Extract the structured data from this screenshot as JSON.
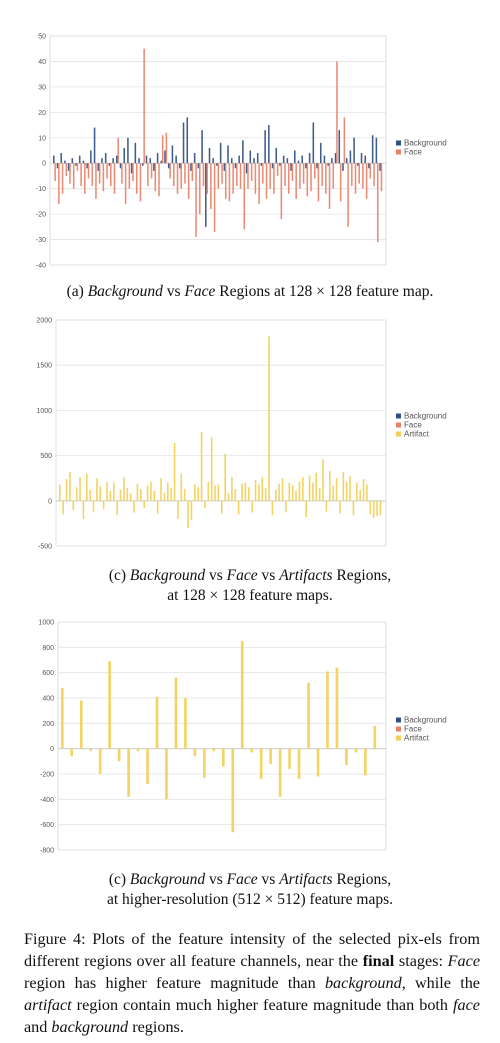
{
  "figure_caption": {
    "prefix": "Figure 4: Plots of the feature intensity of the selected pix-els from different regions over all feature channels, near the ",
    "bold": "final",
    "mid1": " stages: ",
    "face": "Face",
    "mid2": " region has higher feature magnitude than ",
    "background": "background",
    "mid3": ", while the ",
    "artifact": "artifact",
    "mid4": " region contain much higher feature magnitude than both ",
    "face2": "face",
    "mid5": " and ",
    "background2": "background",
    "suffix": " regions."
  },
  "captions": [
    {
      "label": "(a) ",
      "i1": "Background",
      "t1": " vs ",
      "i2": "Face",
      "t2": " Regions at 128 × 128 feature map.",
      "line2": ""
    },
    {
      "label": "(c) ",
      "i1": "Background",
      "t1": " vs ",
      "i2": "Face",
      "t2": " vs ",
      "i3": "Artifacts",
      "t3": " Regions,",
      "line2": "at 128 × 128 feature maps."
    },
    {
      "label": "(c) ",
      "i1": "Background",
      "t1": " vs ",
      "i2": "Face",
      "t2": " vs ",
      "i3": "Artifacts",
      "t3": " Regions,",
      "line2": "at higher-resolution (512 × 512) feature maps."
    }
  ],
  "colors": {
    "background": "#2f4f7f",
    "face": "#e8816a",
    "artifact": "#f2cf55",
    "grid": "#e3e3e3"
  },
  "chart_data": [
    {
      "type": "bar",
      "ylim": [
        -40,
        50
      ],
      "yticks": [
        50,
        40,
        30,
        20,
        10,
        0,
        -10,
        -20,
        -30,
        -40
      ],
      "grid": true,
      "legend_position": "right",
      "series": [
        {
          "name": "Background",
          "color_key": "background",
          "values": [
            3,
            -2,
            4,
            1,
            -3,
            2,
            -1,
            3,
            1,
            -2,
            5,
            14,
            -3,
            2,
            4,
            -1,
            2,
            3,
            -2,
            6,
            10,
            -4,
            8,
            2,
            -1,
            3,
            2,
            -3,
            4,
            1,
            5,
            -2,
            7,
            3,
            -2,
            16,
            18,
            -3,
            4,
            -2,
            13,
            -25,
            6,
            2,
            -1,
            8,
            -3,
            7,
            2,
            -2,
            3,
            9,
            -4,
            5,
            2,
            4,
            -1,
            13,
            15,
            -2,
            6,
            -1,
            3,
            2,
            -3,
            5,
            1,
            3,
            -2,
            4,
            16,
            -2,
            8,
            3,
            -1,
            2,
            4,
            13,
            -3,
            2,
            5,
            10,
            -1,
            4,
            3,
            -2,
            11,
            10,
            -3
          ]
        },
        {
          "name": "Face",
          "color_key": "face",
          "values": [
            -7,
            -16,
            -12,
            -5,
            -8,
            -10,
            -3,
            -9,
            -12,
            -6,
            -9,
            -14,
            -8,
            -11,
            -6,
            -9,
            -12,
            10,
            -8,
            -16,
            -10,
            -7,
            -12,
            -15,
            45,
            -9,
            -6,
            -11,
            -13,
            11,
            12,
            -6,
            -9,
            -12,
            -10,
            -8,
            -14,
            -7,
            -29,
            -20,
            -9,
            -12,
            -18,
            -27,
            -10,
            -8,
            -14,
            -15,
            -12,
            -9,
            -10,
            -26,
            -10,
            -7,
            -12,
            -16,
            -8,
            -14,
            -10,
            -12,
            -5,
            -22,
            -9,
            -12,
            -7,
            -14,
            -10,
            -8,
            -13,
            -11,
            -6,
            -15,
            -9,
            -12,
            -18,
            -10,
            40,
            -15,
            18,
            -25,
            -9,
            -12,
            -8,
            -10,
            -14,
            -6,
            -9,
            -31,
            -11
          ]
        }
      ]
    },
    {
      "type": "bar",
      "ylim": [
        -500,
        2000
      ],
      "yticks": [
        2000,
        1500,
        1000,
        500,
        0,
        -500
      ],
      "grid": true,
      "legend_position": "right",
      "series": [
        {
          "name": "Background",
          "color_key": "background",
          "values": []
        },
        {
          "name": "Face",
          "color_key": "face",
          "values": []
        },
        {
          "name": "Artifact",
          "color_key": "artifact",
          "values": [
            180,
            -150,
            240,
            320,
            -100,
            150,
            260,
            -200,
            300,
            120,
            -120,
            250,
            160,
            -90,
            210,
            110,
            200,
            -160,
            120,
            260,
            140,
            80,
            -130,
            190,
            130,
            -80,
            170,
            210,
            110,
            -140,
            250,
            90,
            200,
            140,
            640,
            -200,
            300,
            130,
            -300,
            -210,
            180,
            150,
            760,
            -80,
            210,
            700,
            170,
            180,
            -140,
            520,
            80,
            260,
            130,
            -150,
            190,
            200,
            150,
            -130,
            230,
            180,
            260,
            140,
            1820,
            -160,
            120,
            190,
            250,
            -120,
            200,
            170,
            110,
            210,
            260,
            -180,
            280,
            200,
            310,
            140,
            460,
            -120,
            330,
            170,
            250,
            -140,
            320,
            210,
            270,
            -160,
            200,
            120,
            240,
            180,
            -150,
            -190,
            -170,
            -160
          ]
        }
      ]
    },
    {
      "type": "bar",
      "ylim": [
        -800,
        1000
      ],
      "yticks": [
        1000,
        800,
        600,
        400,
        200,
        0,
        -200,
        -400,
        -600,
        -800
      ],
      "grid": true,
      "legend_position": "right",
      "series": [
        {
          "name": "Background",
          "color_key": "background",
          "values": []
        },
        {
          "name": "Face",
          "color_key": "face",
          "values": []
        },
        {
          "name": "Artifact",
          "color_key": "artifact",
          "values": [
            480,
            -60,
            380,
            -20,
            -200,
            690,
            -100,
            -380,
            -20,
            -280,
            410,
            -400,
            560,
            400,
            -60,
            -230,
            -20,
            -140,
            -660,
            850,
            -30,
            -240,
            -120,
            -380,
            -160,
            -240,
            520,
            -220,
            610,
            640,
            -130,
            -30,
            -210,
            180
          ]
        }
      ]
    }
  ]
}
